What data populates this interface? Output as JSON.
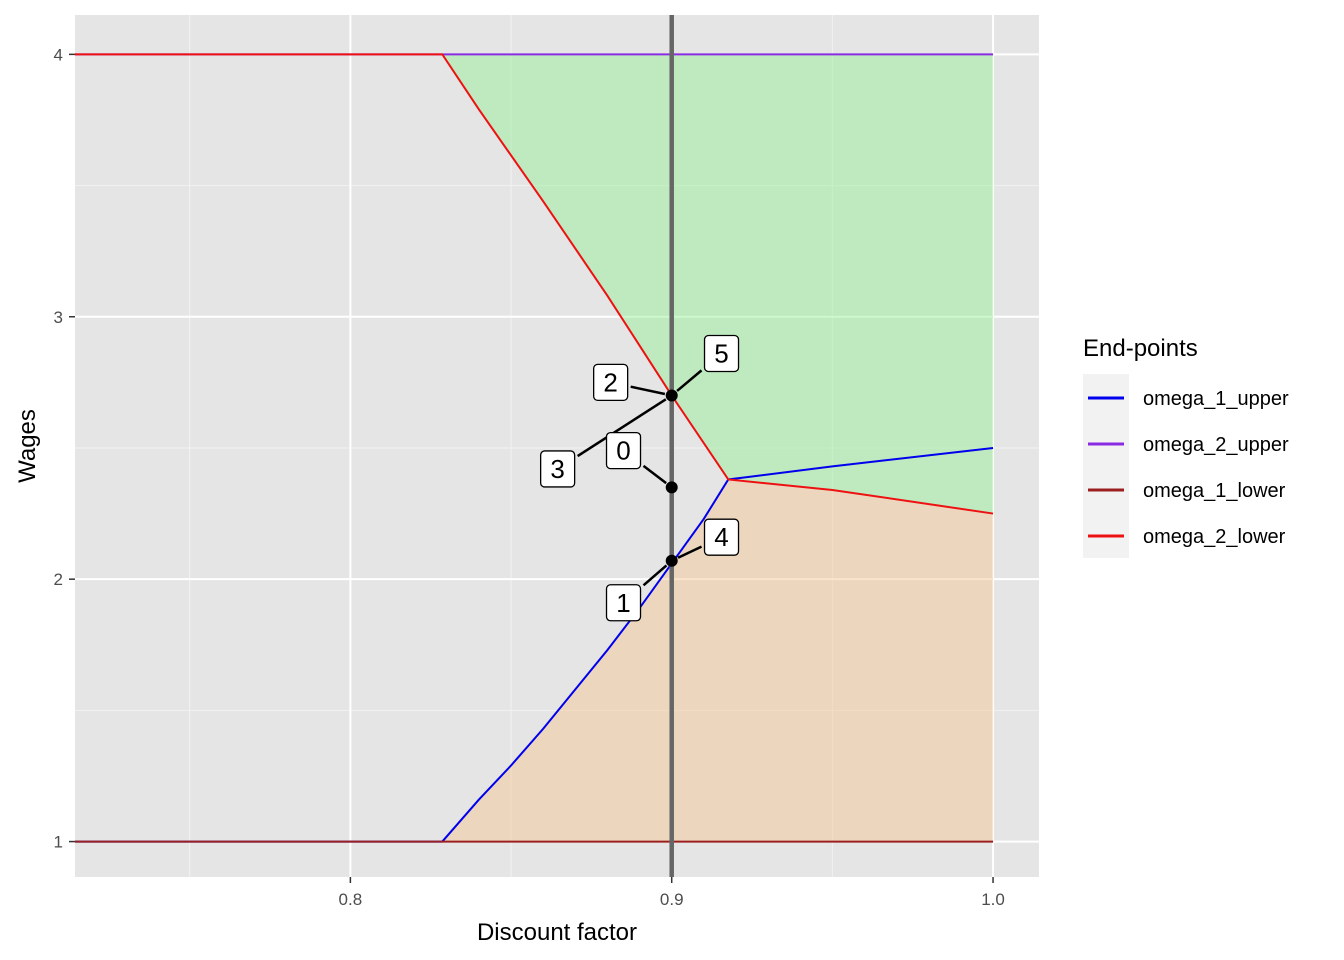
{
  "chart_data": {
    "type": "line",
    "xlabel": "Discount factor",
    "ylabel": "Wages",
    "xlim": [
      0.7143,
      1.0143
    ],
    "ylim": [
      0.865,
      4.15
    ],
    "x_ticks": [
      0.8,
      0.9,
      1.0
    ],
    "x_tick_labels": [
      "0.8",
      "0.9",
      "1.0"
    ],
    "y_ticks": [
      1,
      2,
      3,
      4
    ],
    "y_tick_labels": [
      "1",
      "2",
      "3",
      "4"
    ],
    "grid": true,
    "legend": {
      "title": "End-points",
      "position": "right",
      "entries": [
        "omega_1_upper",
        "omega_2_upper",
        "omega_1_lower",
        "omega_2_lower"
      ]
    },
    "series": [
      {
        "name": "omega_1_upper",
        "color": "#0000ee",
        "x": [
          0.7143,
          0.8286,
          0.84,
          0.85,
          0.86,
          0.87,
          0.88,
          0.89,
          0.9,
          0.91,
          0.9176,
          0.95,
          1.0
        ],
        "y": [
          1.0,
          1.0,
          1.16,
          1.29,
          1.43,
          1.58,
          1.73,
          1.89,
          2.06,
          2.23,
          2.38,
          2.43,
          2.5
        ]
      },
      {
        "name": "omega_2_upper",
        "color": "#8a2be2",
        "x": [
          0.7143,
          1.0
        ],
        "y": [
          4.0,
          4.0
        ]
      },
      {
        "name": "omega_1_lower",
        "color": "#9b1f1f",
        "x": [
          0.7143,
          1.0
        ],
        "y": [
          1.0,
          1.0
        ]
      },
      {
        "name": "omega_2_lower",
        "color": "#ee1111",
        "x": [
          0.7143,
          0.8286,
          0.84,
          0.86,
          0.88,
          0.9,
          0.9176,
          0.95,
          1.0
        ],
        "y": [
          4.0,
          4.0,
          3.79,
          3.44,
          3.08,
          2.7,
          2.38,
          2.34,
          2.25
        ]
      }
    ],
    "shaded_regions": [
      {
        "color": "#90ee90",
        "x": [
          0.8286,
          0.84,
          0.86,
          0.88,
          0.9,
          0.9176,
          0.95,
          1.0
        ],
        "lower": [
          4.0,
          3.79,
          3.44,
          3.08,
          2.7,
          2.38,
          2.34,
          2.25
        ],
        "upper": [
          4.0,
          4.0,
          4.0,
          4.0,
          4.0,
          4.0,
          4.0,
          4.0
        ]
      },
      {
        "color": "#f4c48c",
        "x": [
          0.8286,
          0.84,
          0.85,
          0.86,
          0.87,
          0.88,
          0.89,
          0.9,
          0.91,
          0.9176,
          0.95,
          1.0
        ],
        "lower": [
          1.0,
          1.0,
          1.0,
          1.0,
          1.0,
          1.0,
          1.0,
          1.0,
          1.0,
          1.0,
          1.0,
          1.0
        ],
        "upper": [
          1.0,
          1.16,
          1.29,
          1.43,
          1.58,
          1.73,
          1.89,
          2.06,
          2.23,
          2.38,
          2.34,
          2.25
        ]
      }
    ],
    "vertical_line": {
      "x": 0.9,
      "color": "#666666"
    },
    "points": [
      {
        "x": 0.9,
        "y": 2.7
      },
      {
        "x": 0.9,
        "y": 2.35
      },
      {
        "x": 0.9,
        "y": 2.07
      }
    ],
    "labels": [
      {
        "text": "0",
        "x": 0.885,
        "y": 2.49,
        "target_x": 0.9,
        "target_y": 2.35
      },
      {
        "text": "1",
        "x": 0.885,
        "y": 1.91,
        "target_x": 0.9,
        "target_y": 2.07
      },
      {
        "text": "2",
        "x": 0.881,
        "y": 2.75,
        "target_x": 0.9,
        "target_y": 2.7
      },
      {
        "text": "3",
        "x": 0.8645,
        "y": 2.42,
        "target_x": 0.9,
        "target_y": 2.7
      },
      {
        "text": "4",
        "x": 0.9155,
        "y": 2.16,
        "target_x": 0.9,
        "target_y": 2.07
      },
      {
        "text": "5",
        "x": 0.9155,
        "y": 2.86,
        "target_x": 0.9,
        "target_y": 2.7
      }
    ]
  }
}
